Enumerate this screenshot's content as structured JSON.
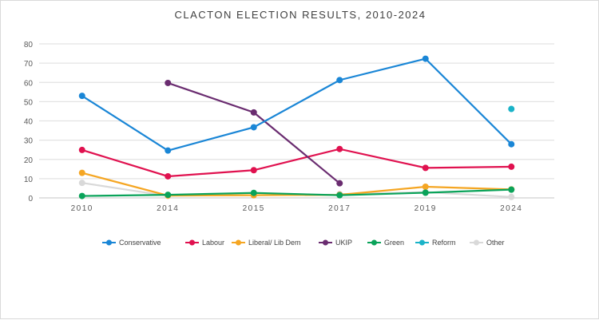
{
  "chart_data": {
    "type": "line",
    "title": "CLACTON ELECTION RESULTS, 2010-2024",
    "categories": [
      "2010",
      "2014",
      "2015",
      "2017",
      "2019",
      "2024"
    ],
    "ylim": [
      0,
      80
    ],
    "yticks": [
      0,
      10,
      20,
      30,
      40,
      50,
      60,
      70,
      80
    ],
    "grid": true,
    "legend": "bottom",
    "series": [
      {
        "name": "Conservative",
        "color": "#1a86d6",
        "values": [
          53.0,
          24.6,
          36.7,
          61.2,
          72.3,
          27.9
        ]
      },
      {
        "name": "Labour",
        "color": "#e0114f",
        "values": [
          24.9,
          11.2,
          14.4,
          25.4,
          15.6,
          16.2
        ]
      },
      {
        "name": "Liberal/ Lib Dem",
        "color": "#f5a623",
        "values": [
          13.0,
          1.2,
          1.4,
          1.6,
          5.8,
          4.4
        ]
      },
      {
        "name": "UKIP",
        "color": "#6a2c70",
        "values": [
          null,
          59.7,
          44.4,
          7.6,
          null,
          null
        ]
      },
      {
        "name": "Green",
        "color": "#0aa35a",
        "values": [
          1.0,
          1.6,
          2.6,
          1.4,
          2.7,
          4.3
        ]
      },
      {
        "name": "Reform",
        "color": "#1ab3c8",
        "values": [
          null,
          null,
          null,
          null,
          null,
          46.2
        ]
      },
      {
        "name": "Other",
        "color": "#d9d9d9",
        "values": [
          7.8,
          1.0,
          null,
          2.0,
          3.0,
          0.5
        ]
      }
    ]
  }
}
